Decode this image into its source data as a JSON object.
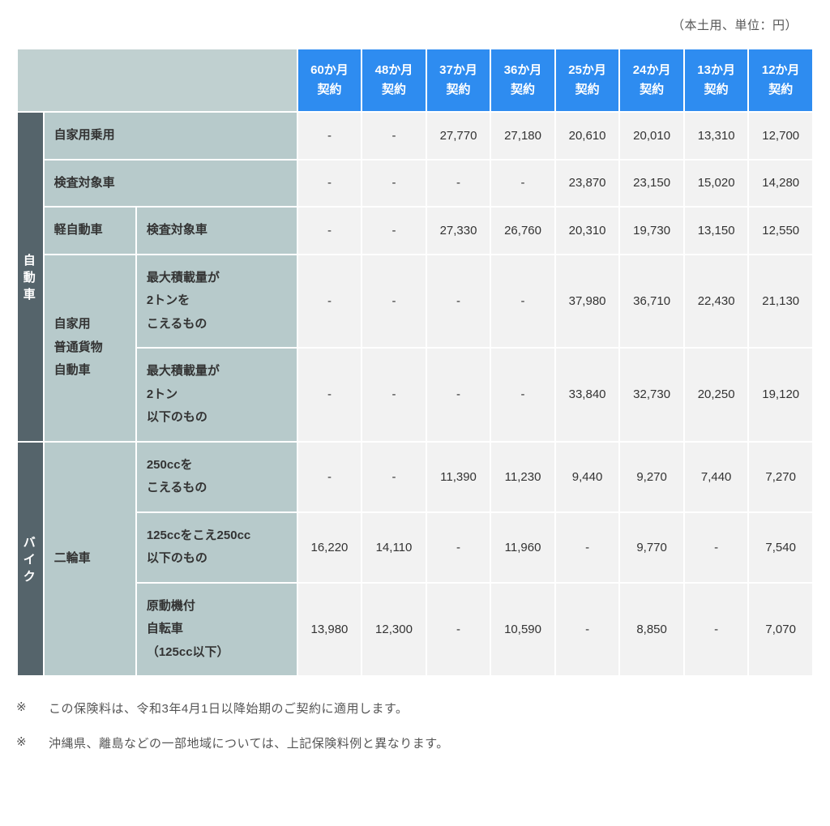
{
  "caption_top": "（本土用、単位：円）",
  "columns": [
    "60か月\n契約",
    "48か月\n契約",
    "37か月\n契約",
    "36か月\n契約",
    "25か月\n契約",
    "24か月\n契約",
    "13か月\n契約",
    "12か月\n契約"
  ],
  "vcats": {
    "auto": "自動車",
    "bike": "バイク"
  },
  "rows": [
    {
      "vcat": "auto",
      "sub1": "自家用乗用",
      "sub1_span": 2,
      "sub2": null,
      "cells": [
        "-",
        "-",
        "27,770",
        "27,180",
        "20,610",
        "20,010",
        "13,310",
        "12,700"
      ]
    },
    {
      "vcat": "auto",
      "sub1": "検査対象車",
      "sub1_span": 2,
      "sub2": null,
      "cells": [
        "-",
        "-",
        "-",
        "-",
        "23,870",
        "23,150",
        "15,020",
        "14,280"
      ]
    },
    {
      "vcat": "auto",
      "sub1": "軽自動車",
      "sub1_span": 1,
      "sub2": "検査対象車",
      "cells": [
        "-",
        "-",
        "27,330",
        "26,760",
        "20,310",
        "19,730",
        "13,150",
        "12,550"
      ]
    },
    {
      "vcat": "auto",
      "sub1": "自家用\n普通貨物\n自動車",
      "sub1_span": 1,
      "sub1_rowspan": 2,
      "sub2": "最大積載量が\n2トンを\nこえるもの",
      "cells": [
        "-",
        "-",
        "-",
        "-",
        "37,980",
        "36,710",
        "22,430",
        "21,130"
      ]
    },
    {
      "vcat": "auto",
      "sub1": null,
      "sub2": "最大積載量が\n2トン\n以下のもの",
      "cells": [
        "-",
        "-",
        "-",
        "-",
        "33,840",
        "32,730",
        "20,250",
        "19,120"
      ]
    },
    {
      "vcat": "bike",
      "sub1": "二輪車",
      "sub1_span": 1,
      "sub1_rowspan": 3,
      "sub2": "250ccを\nこえるもの",
      "cells": [
        "-",
        "-",
        "11,390",
        "11,230",
        "9,440",
        "9,270",
        "7,440",
        "7,270"
      ]
    },
    {
      "vcat": "bike",
      "sub1": null,
      "sub2": "125ccをこえ250cc\n以下のもの",
      "cells": [
        "16,220",
        "14,110",
        "-",
        "11,960",
        "-",
        "9,770",
        "-",
        "7,540"
      ]
    },
    {
      "vcat": "bike",
      "sub1": null,
      "sub2": "原動機付\n自転車\n（125cc以下）",
      "cells": [
        "13,980",
        "12,300",
        "-",
        "10,590",
        "-",
        "8,850",
        "-",
        "7,070"
      ]
    }
  ],
  "notes": [
    "この保険料は、令和3年4月1日以降始期のご契約に適用します。",
    "沖縄県、離島などの一部地域については、上記保険料例と異なります。"
  ],
  "note_mark": "※",
  "colors": {
    "header_bg": "#2e8cf0",
    "vcat_bg": "#55646b",
    "rowhead_bg": "#b7cacb",
    "cell_bg": "#f2f2f2",
    "border": "#ffffff"
  },
  "layout": {
    "col_widths": {
      "vcat": 32,
      "sub1": 112,
      "sub2": 195,
      "num": 78
    }
  }
}
